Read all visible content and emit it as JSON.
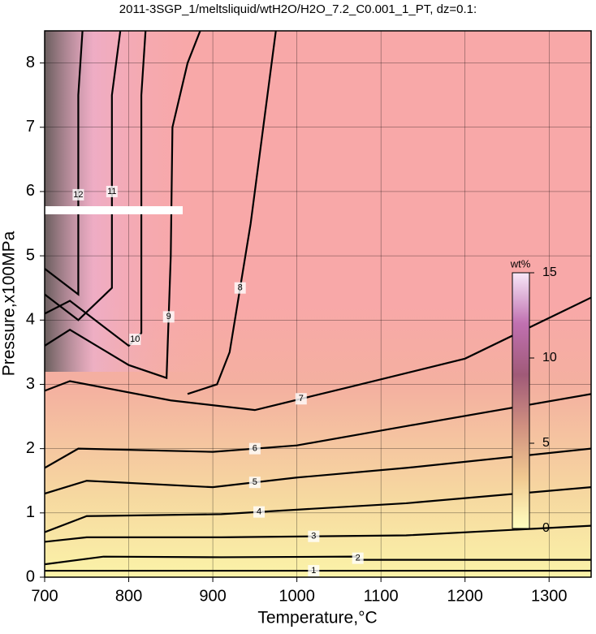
{
  "chart_data": {
    "type": "contour",
    "title": "2011-3SGP_1/meltsliquid/wtH2O/H2O_7.2_C0.001_1_PT, dz=0.1:",
    "x_label": "Temperature,°C",
    "y_label": "Pressure,x100MPa",
    "xlim": [
      700,
      1350
    ],
    "ylim": [
      0,
      8.5
    ],
    "xticks": [
      700,
      800,
      900,
      1000,
      1100,
      1200,
      1300
    ],
    "yticks": [
      0,
      1,
      2,
      3,
      4,
      5,
      6,
      7,
      8
    ],
    "grid": true,
    "colorbar_label": "wt%",
    "clim": [
      0,
      15
    ],
    "cticks": [
      0,
      5,
      10,
      15
    ],
    "colormap": [
      "#ffffc0",
      "#f0c890",
      "#d09080",
      "#a05a78",
      "#c070b0",
      "#f8e8f8"
    ],
    "contours": [
      {
        "level": 1,
        "x": [
          700,
          910,
          1130,
          1350
        ],
        "y": [
          0.1,
          0.1,
          0.1,
          0.1
        ]
      },
      {
        "level": 2,
        "x": [
          700,
          770,
          910,
          1070,
          1075,
          1130,
          1350
        ],
        "y": [
          0.2,
          0.32,
          0.31,
          0.32,
          0.27,
          0.27,
          0.27
        ]
      },
      {
        "level": 3,
        "x": [
          700,
          750,
          910,
          1130,
          1350
        ],
        "y": [
          0.55,
          0.62,
          0.62,
          0.65,
          0.8
        ]
      },
      {
        "level": 4,
        "x": [
          700,
          750,
          910,
          1000,
          1130,
          1350
        ],
        "y": [
          0.7,
          0.95,
          0.98,
          1.05,
          1.15,
          1.4
        ]
      },
      {
        "level": 5,
        "x": [
          700,
          750,
          900,
          1000,
          1130,
          1350
        ],
        "y": [
          1.3,
          1.5,
          1.4,
          1.55,
          1.7,
          2.0
        ]
      },
      {
        "level": 6,
        "x": [
          700,
          740,
          900,
          1000,
          1130,
          1350
        ],
        "y": [
          1.7,
          2.0,
          1.95,
          2.05,
          2.35,
          2.85
        ]
      },
      {
        "level": 7,
        "x": [
          700,
          730,
          850,
          950,
          1060,
          1200,
          1350
        ],
        "y": [
          2.9,
          3.05,
          2.75,
          2.6,
          2.95,
          3.4,
          4.35
        ]
      },
      {
        "level": 8,
        "x": [
          870,
          905,
          920,
          945,
          975
        ],
        "y": [
          2.85,
          3.0,
          3.5,
          5.5,
          8.5
        ]
      },
      {
        "level": 9,
        "x": [
          700,
          730,
          800,
          845,
          850,
          852,
          870,
          885
        ],
        "y": [
          3.6,
          3.85,
          3.3,
          3.1,
          5.0,
          7.0,
          8.0,
          8.5
        ]
      },
      {
        "level": 10,
        "x": [
          700,
          730,
          800,
          815,
          815,
          820
        ],
        "y": [
          4.1,
          4.3,
          3.6,
          3.8,
          7.5,
          8.5
        ]
      },
      {
        "level": 11,
        "x": [
          700,
          740,
          780,
          780,
          790
        ],
        "y": [
          4.4,
          4.0,
          4.5,
          7.5,
          8.5
        ]
      },
      {
        "level": 12,
        "x": [
          700,
          740,
          740,
          745
        ],
        "y": [
          4.8,
          4.4,
          7.5,
          8.5
        ]
      }
    ]
  }
}
